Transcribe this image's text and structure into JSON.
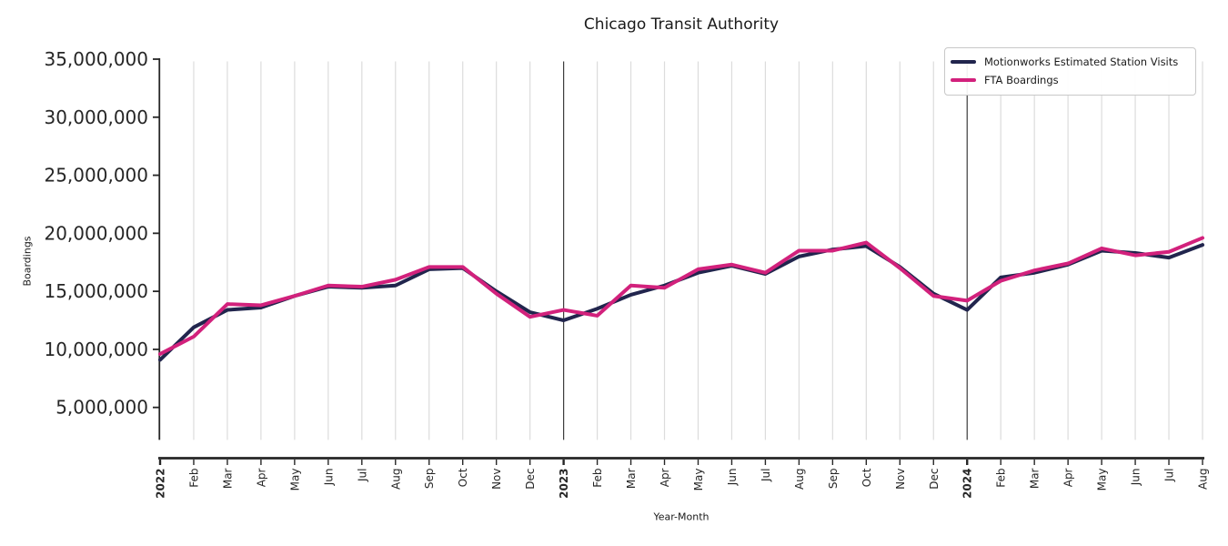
{
  "figure": {
    "title": "Chicago Transit Authority",
    "xlabel": "Year-Month",
    "ylabel": "Boardings"
  },
  "chart_data": {
    "type": "line",
    "title": "Chicago Transit Authority",
    "xlabel": "Year-Month",
    "ylabel": "Boardings",
    "x_tick_labels": [
      "2022",
      "Feb",
      "Mar",
      "Apr",
      "May",
      "Jun",
      "Jul",
      "Aug",
      "Sep",
      "Oct",
      "Nov",
      "Dec",
      "2023",
      "Feb",
      "Mar",
      "Apr",
      "May",
      "Jun",
      "Jul",
      "Aug",
      "Sep",
      "Oct",
      "Nov",
      "Dec",
      "2024",
      "Feb",
      "Mar",
      "Apr",
      "May",
      "Jun",
      "Jul",
      "Aug"
    ],
    "bold_x_tick_indices": [
      0,
      12,
      24
    ],
    "year_boundary_indices": [
      12,
      24
    ],
    "y_tick_values": [
      5000000,
      10000000,
      15000000,
      20000000,
      25000000,
      30000000,
      35000000
    ],
    "y_tick_labels": [
      "5,000,000",
      "10,000,000",
      "15,000,000",
      "20,000,000",
      "25,000,000",
      "30,000,000",
      "35,000,000"
    ],
    "ylim": [
      2200000,
      35000000
    ],
    "grid": "vertical-per-month",
    "legend_position": "upper right",
    "series": [
      {
        "name": "Motionworks Estimated Station Visits",
        "color": "#21254d",
        "values": [
          9100000,
          11900000,
          13400000,
          13600000,
          14600000,
          15400000,
          15300000,
          15500000,
          16900000,
          17000000,
          15000000,
          13200000,
          12500000,
          13500000,
          14700000,
          15500000,
          16600000,
          17200000,
          16500000,
          18000000,
          18600000,
          18900000,
          17100000,
          14800000,
          13400000,
          16200000,
          16600000,
          17300000,
          18500000,
          18300000,
          17900000,
          19000000
        ]
      },
      {
        "name": "FTA Boardings",
        "color": "#d2217c",
        "values": [
          9600000,
          11100000,
          13900000,
          13800000,
          14600000,
          15500000,
          15400000,
          16000000,
          17100000,
          17100000,
          14800000,
          12800000,
          13400000,
          12900000,
          15500000,
          15300000,
          16900000,
          17300000,
          16600000,
          18500000,
          18500000,
          19200000,
          17000000,
          14600000,
          14200000,
          15900000,
          16800000,
          17400000,
          18700000,
          18100000,
          18400000,
          19600000
        ]
      }
    ],
    "styling": {
      "gridline_color": "#dcdcdc",
      "year_line_color": "#3c3c3c",
      "axis_color": "#262626",
      "tick_label_color": "#262626",
      "background_color": "#ffffff"
    }
  }
}
